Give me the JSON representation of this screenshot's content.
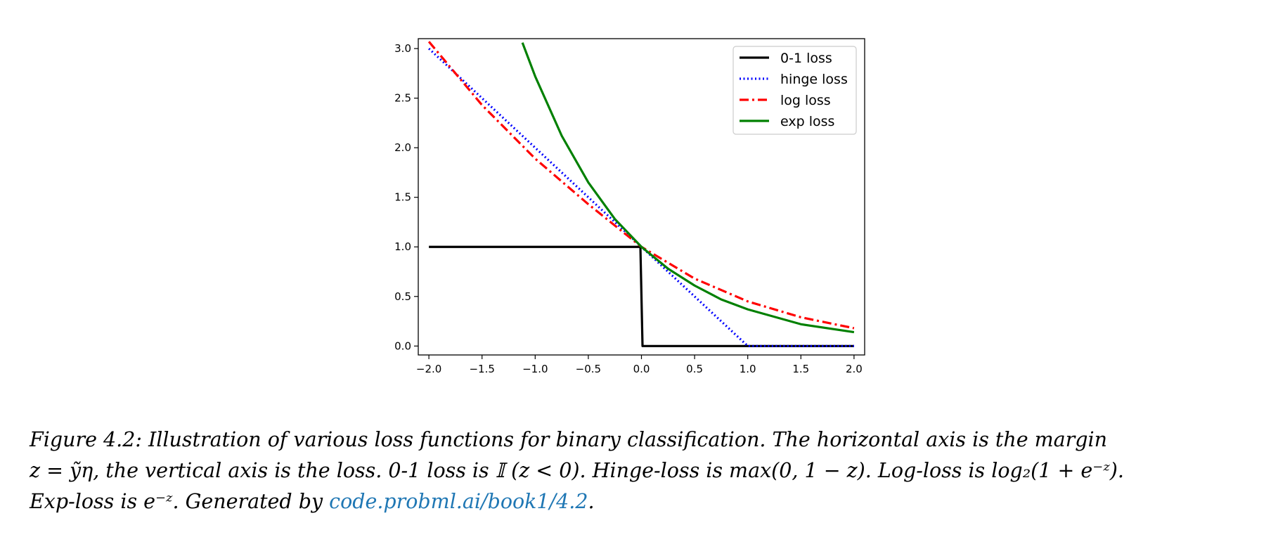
{
  "chart_data": {
    "type": "line",
    "title": "",
    "xlabel": "",
    "ylabel": "",
    "xlim": [
      -2.1,
      2.1
    ],
    "ylim": [
      -0.09,
      3.1
    ],
    "x_ticks": [
      -2.0,
      -1.5,
      -1.0,
      -0.5,
      0.0,
      0.5,
      1.0,
      1.5,
      2.0
    ],
    "x_tick_labels": [
      "−2.0",
      "−1.5",
      "−1.0",
      "−0.5",
      "0.0",
      "0.5",
      "1.0",
      "1.5",
      "2.0"
    ],
    "y_ticks": [
      0.0,
      0.5,
      1.0,
      1.5,
      2.0,
      2.5,
      3.0
    ],
    "y_tick_labels": [
      "0.0",
      "0.5",
      "1.0",
      "1.5",
      "2.0",
      "2.5",
      "3.0"
    ],
    "grid": false,
    "legend_position": "top-right",
    "series": [
      {
        "name": "0-1 loss",
        "color": "#000000",
        "style": "solid",
        "x": [
          -2.0,
          -1.5,
          -1.0,
          -0.5,
          -0.01,
          0.01,
          0.5,
          1.0,
          1.5,
          2.0
        ],
        "y": [
          1,
          1,
          1,
          1,
          1,
          0,
          0,
          0,
          0,
          0
        ]
      },
      {
        "name": "hinge loss",
        "color": "#0000ff",
        "style": "dotted",
        "x": [
          -2.0,
          -1.5,
          -1.0,
          -0.5,
          0.0,
          0.5,
          1.0,
          1.5,
          2.0
        ],
        "y": [
          3.0,
          2.5,
          2.0,
          1.5,
          1.0,
          0.5,
          0.0,
          0.0,
          0.0
        ]
      },
      {
        "name": "log loss",
        "color": "#ff0000",
        "style": "dashdot",
        "x": [
          -2.0,
          -1.5,
          -1.0,
          -0.5,
          0.0,
          0.5,
          1.0,
          1.5,
          2.0
        ],
        "y": [
          3.07,
          2.43,
          1.89,
          1.43,
          1.0,
          0.68,
          0.45,
          0.29,
          0.18
        ]
      },
      {
        "name": "exp loss",
        "color": "#008000",
        "style": "solid",
        "x": [
          -1.12,
          -1.0,
          -0.75,
          -0.5,
          -0.25,
          0.0,
          0.25,
          0.5,
          0.75,
          1.0,
          1.5,
          2.0
        ],
        "y": [
          3.06,
          2.72,
          2.12,
          1.65,
          1.28,
          1.0,
          0.78,
          0.61,
          0.47,
          0.37,
          0.22,
          0.14
        ]
      }
    ]
  },
  "caption": {
    "line1": "Figure 4.2: Illustration of various loss functions for binary classification. The horizontal axis is the margin",
    "line2": "z = ỹη, the vertical axis is the loss. 0-1 loss is 𝕀 (z < 0). Hinge-loss is max(0, 1 − z). Log-loss is log₂(1 + e⁻ᶻ).",
    "line3_prefix": "Exp-loss is e⁻ᶻ. Generated by ",
    "link": "code.probml.ai/book1/4.2",
    "line3_suffix": "."
  }
}
